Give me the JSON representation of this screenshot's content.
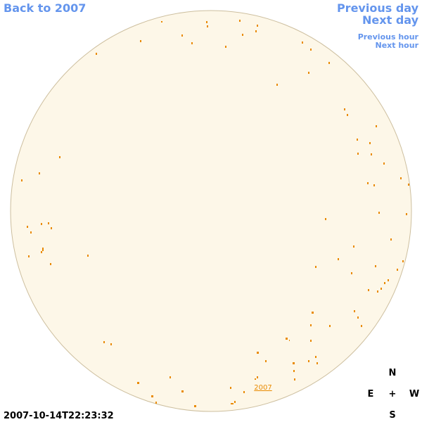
{
  "nav": {
    "back": "Back to 2007",
    "previous_day": "Previous day",
    "next_day": "Next day",
    "previous_hour": "Previous hour",
    "next_hour": "Next hour"
  },
  "timestamp": "2007-10-14T22:23:32",
  "sky": {
    "label": "2007"
  },
  "compass": {
    "north": "N",
    "east": "E",
    "center": "+",
    "west": "W",
    "south": "S"
  }
}
